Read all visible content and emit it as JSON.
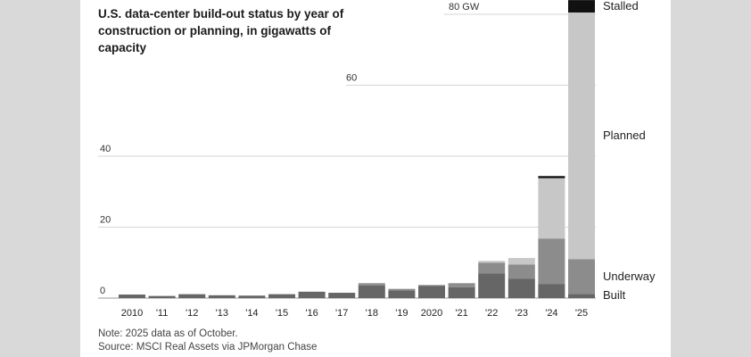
{
  "chart_data": {
    "type": "bar",
    "stacked": true,
    "title": "U.S. data-center build-out status by year of construction or planning, in gigawatts of capacity",
    "categories": [
      "2010",
      "'11",
      "'12",
      "'13",
      "'14",
      "'15",
      "'16",
      "'17",
      "'18",
      "'19",
      "2020",
      "'21",
      "'22",
      "'23",
      "'24",
      "'25"
    ],
    "series": [
      {
        "name": "Built",
        "color": "#666666",
        "values": [
          1.0,
          0.6,
          1.1,
          0.8,
          0.7,
          1.1,
          1.8,
          1.5,
          3.6,
          2.2,
          3.4,
          3.1,
          7.0,
          5.5,
          4.0,
          1.2
        ]
      },
      {
        "name": "Underway",
        "color": "#8c8c8c",
        "values": [
          0,
          0,
          0,
          0,
          0,
          0,
          0,
          0,
          0.6,
          0.4,
          0.3,
          1.1,
          3.0,
          4.0,
          12.8,
          9.8
        ]
      },
      {
        "name": "Planned",
        "color": "#c7c7c7",
        "values": [
          0,
          0,
          0,
          0,
          0,
          0,
          0,
          0,
          0,
          0,
          0,
          0,
          0.5,
          1.8,
          17.0,
          69.5
        ]
      },
      {
        "name": "Stalled",
        "color": "#111111",
        "values": [
          0,
          0,
          0,
          0,
          0,
          0,
          0,
          0,
          0,
          0,
          0,
          0,
          0,
          0,
          0.6,
          3.5
        ]
      }
    ],
    "ylim": [
      0,
      82
    ],
    "yticks": [
      0,
      20,
      40,
      60,
      80
    ],
    "ytick_labels": [
      "0",
      "20",
      "40",
      "60",
      "80 GW"
    ],
    "grid": true,
    "legend_placement": "right, labels beside last bar",
    "note": "Note: 2025 data as of October.",
    "source": "Source: MSCI Real Assets via JPMorgan Chase"
  }
}
